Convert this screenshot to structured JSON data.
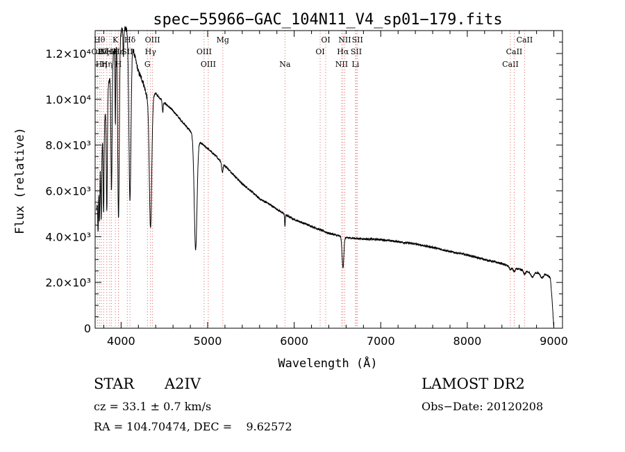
{
  "chart_data": {
    "type": "line",
    "title": "spec−55966−GAC_104N11_V4_sp01−179.fits",
    "xlabel": "Wavelength (Å)",
    "ylabel": "Flux (relative)",
    "xlim": [
      3700,
      9100
    ],
    "ylim": [
      0,
      13000
    ],
    "xticks": [
      4000,
      5000,
      6000,
      7000,
      8000,
      9000
    ],
    "xtick_labels": [
      "4000",
      "5000",
      "6000",
      "7000",
      "8000",
      "9000"
    ],
    "yticks": [
      0,
      2000,
      4000,
      6000,
      8000,
      10000,
      12000
    ],
    "ytick_labels": [
      "0",
      "2.0×10³",
      "4.0×10³",
      "6.0×10³",
      "8.0×10³",
      "1.0×10⁴",
      "1.2×10⁴"
    ],
    "grid": false,
    "continuum": [
      [
        3720,
        5200
      ],
      [
        3760,
        7300
      ],
      [
        3800,
        8800
      ],
      [
        3850,
        10500
      ],
      [
        3900,
        11800
      ],
      [
        3950,
        12600
      ],
      [
        4000,
        13000
      ],
      [
        4050,
        13100
      ],
      [
        4100,
        12900
      ],
      [
        4150,
        12000
      ],
      [
        4200,
        11200
      ],
      [
        4250,
        10800
      ],
      [
        4300,
        10100
      ],
      [
        4350,
        10200
      ],
      [
        4400,
        10250
      ],
      [
        4450,
        10050
      ],
      [
        4500,
        9850
      ],
      [
        4600,
        9500
      ],
      [
        4700,
        9050
      ],
      [
        4780,
        8700
      ],
      [
        4900,
        8150
      ],
      [
        5000,
        7850
      ],
      [
        5100,
        7500
      ],
      [
        5200,
        7100
      ],
      [
        5300,
        6700
      ],
      [
        5400,
        6300
      ],
      [
        5500,
        6000
      ],
      [
        5600,
        5650
      ],
      [
        5700,
        5450
      ],
      [
        5800,
        5200
      ],
      [
        5900,
        4950
      ],
      [
        6000,
        4750
      ],
      [
        6100,
        4600
      ],
      [
        6200,
        4450
      ],
      [
        6300,
        4300
      ],
      [
        6400,
        4150
      ],
      [
        6500,
        4050
      ],
      [
        6600,
        3950
      ],
      [
        6700,
        3930
      ],
      [
        6800,
        3900
      ],
      [
        7000,
        3870
      ],
      [
        7200,
        3780
      ],
      [
        7400,
        3680
      ],
      [
        7600,
        3530
      ],
      [
        7800,
        3350
      ],
      [
        8000,
        3200
      ],
      [
        8200,
        3000
      ],
      [
        8400,
        2820
      ],
      [
        8500,
        2680
      ],
      [
        8600,
        2570
      ],
      [
        8700,
        2480
      ],
      [
        8800,
        2420
      ],
      [
        8900,
        2380
      ],
      [
        8960,
        2200
      ],
      [
        8980,
        1200
      ],
      [
        9000,
        0
      ]
    ],
    "absorption_lines": [
      {
        "wavelength": 3734,
        "depth": 1800,
        "width": 4
      },
      {
        "wavelength": 3750,
        "depth": 2200,
        "width": 4
      },
      {
        "wavelength": 3770,
        "depth": 3000,
        "width": 5
      },
      {
        "wavelength": 3798,
        "depth": 3800,
        "width": 5
      },
      {
        "wavelength": 3835,
        "depth": 4800,
        "width": 6
      },
      {
        "wavelength": 3889,
        "depth": 5500,
        "width": 7
      },
      {
        "wavelength": 3934,
        "depth": 3500,
        "width": 4
      },
      {
        "wavelength": 3970,
        "depth": 8000,
        "width": 9
      },
      {
        "wavelength": 4026,
        "depth": 1200,
        "width": 4
      },
      {
        "wavelength": 4102,
        "depth": 7200,
        "width": 12
      },
      {
        "wavelength": 4340,
        "depth": 5800,
        "width": 14
      },
      {
        "wavelength": 4481,
        "depth": 500,
        "width": 5
      },
      {
        "wavelength": 4861,
        "depth": 4900,
        "width": 16
      },
      {
        "wavelength": 5170,
        "depth": 400,
        "width": 8
      },
      {
        "wavelength": 5893,
        "depth": 500,
        "width": 4
      },
      {
        "wavelength": 6563,
        "depth": 1350,
        "width": 10
      },
      {
        "wavelength": 8498,
        "depth": 120,
        "width": 12
      },
      {
        "wavelength": 8542,
        "depth": 160,
        "width": 12
      },
      {
        "wavelength": 8662,
        "depth": 150,
        "width": 12
      },
      {
        "wavelength": 8750,
        "depth": 220,
        "width": 18
      },
      {
        "wavelength": 8863,
        "depth": 200,
        "width": 18
      }
    ],
    "line_markers": [
      {
        "wavelength": 3727,
        "label": "OII",
        "row": 1
      },
      {
        "wavelength": 3750,
        "label": "Hθ",
        "row": 0
      },
      {
        "wavelength": 3771,
        "label": "Hη",
        "row": 2
      },
      {
        "wavelength": 3798,
        "label": "Hζ",
        "row": 1
      },
      {
        "wavelength": 3835,
        "label": "Hη",
        "row": 2
      },
      {
        "wavelength": 3869,
        "label": "NeIII",
        "row": 1
      },
      {
        "wavelength": 3889,
        "label": "He",
        "row": 1
      },
      {
        "wavelength": 3934,
        "label": "K",
        "row": 0
      },
      {
        "wavelength": 3969,
        "label": "H",
        "row": 2
      },
      {
        "wavelength": 3970,
        "label": "Hε",
        "row": 1
      },
      {
        "wavelength": 4072,
        "label": "SII",
        "row": 1
      },
      {
        "wavelength": 4102,
        "label": "Hδ",
        "row": 0
      },
      {
        "wavelength": 4304,
        "label": "G",
        "row": 2
      },
      {
        "wavelength": 4340,
        "label": "Hγ",
        "row": 1
      },
      {
        "wavelength": 4363,
        "label": "OIII",
        "row": 0
      },
      {
        "wavelength": 4959,
        "label": "OIII",
        "row": 1
      },
      {
        "wavelength": 5007,
        "label": "OIII",
        "row": 2
      },
      {
        "wavelength": 5175,
        "label": "Mg",
        "row": 0
      },
      {
        "wavelength": 5893,
        "label": "Na",
        "row": 2
      },
      {
        "wavelength": 6300,
        "label": "OI",
        "row": 1
      },
      {
        "wavelength": 6364,
        "label": "OI",
        "row": 0
      },
      {
        "wavelength": 6548,
        "label": "NII",
        "row": 2
      },
      {
        "wavelength": 6563,
        "label": "Hα",
        "row": 1
      },
      {
        "wavelength": 6584,
        "label": "NII",
        "row": 0
      },
      {
        "wavelength": 6708,
        "label": "Li",
        "row": 2
      },
      {
        "wavelength": 6717,
        "label": "SII",
        "row": 1
      },
      {
        "wavelength": 6731,
        "label": "SII",
        "row": 0
      },
      {
        "wavelength": 8498,
        "label": "CaII",
        "row": 2
      },
      {
        "wavelength": 8542,
        "label": "CaII",
        "row": 1
      },
      {
        "wavelength": 8662,
        "label": "CaII",
        "row": 0
      }
    ]
  },
  "info": {
    "object_type": "STAR",
    "subclass": "A2IV",
    "survey": "LAMOST DR2",
    "redshift": "cz = 33.1 ± 0.7 km/s",
    "obs_date": "Obs−Date: 20120208",
    "coords": "RA = 104.70474, DEC =    9.62572"
  },
  "colors": {
    "spectrum": "#000000",
    "marker_line": "#e06060",
    "axes": "#000000"
  }
}
